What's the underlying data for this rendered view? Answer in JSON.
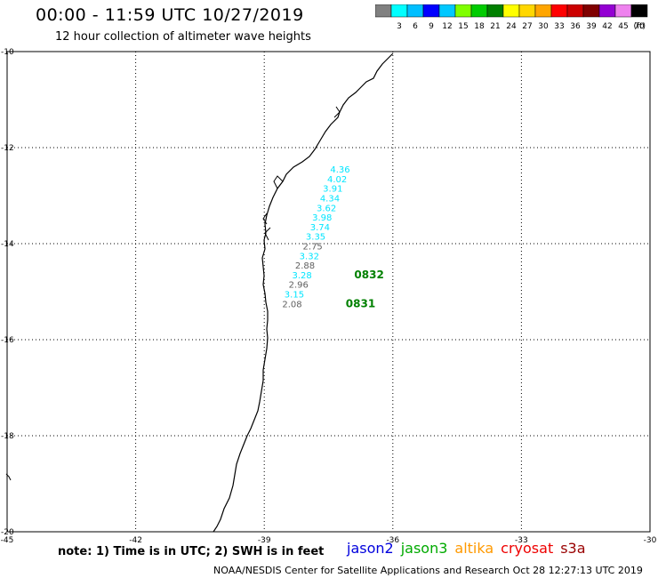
{
  "header": {
    "title": "00:00 - 11:59 UTC 10/27/2019",
    "subtitle": "12 hour collection of altimeter wave heights"
  },
  "colorbar": {
    "unit": "(ft)",
    "bins": [
      {
        "color": "#808080",
        "label": ""
      },
      {
        "color": "#00ffff",
        "label": "3"
      },
      {
        "color": "#00bfff",
        "label": "6"
      },
      {
        "color": "#0000ff",
        "label": "9"
      },
      {
        "color": "#00c8ff",
        "label": "12"
      },
      {
        "color": "#7fff00",
        "label": "15"
      },
      {
        "color": "#00cc00",
        "label": "18"
      },
      {
        "color": "#008000",
        "label": "21"
      },
      {
        "color": "#ffff00",
        "label": "24"
      },
      {
        "color": "#ffd700",
        "label": "27"
      },
      {
        "color": "#ffa500",
        "label": "30"
      },
      {
        "color": "#ff0000",
        "label": "33"
      },
      {
        "color": "#cc0000",
        "label": "36"
      },
      {
        "color": "#800000",
        "label": "39"
      },
      {
        "color": "#9400d3",
        "label": "42"
      },
      {
        "color": "#ee82ee",
        "label": "45"
      },
      {
        "color": "#000000",
        "label": "70"
      }
    ]
  },
  "map": {
    "lon_range": [
      -45,
      -30
    ],
    "lat_range": [
      -20,
      -10
    ],
    "lat_ticks": [
      "-10",
      "-12",
      "-14",
      "-16",
      "-18",
      "-20"
    ],
    "lon_ticks": [
      "-45",
      "-42",
      "-39",
      "-36",
      "-33",
      "-30"
    ],
    "observations": [
      {
        "lon": -37.23,
        "lat": -12.52,
        "value": "4.36",
        "color": "#00e5ff"
      },
      {
        "lon": -37.3,
        "lat": -12.72,
        "value": "4.02",
        "color": "#00e5ff"
      },
      {
        "lon": -37.4,
        "lat": -12.92,
        "value": "3.91",
        "color": "#00e5ff"
      },
      {
        "lon": -37.47,
        "lat": -13.12,
        "value": "4.34",
        "color": "#00e5ff"
      },
      {
        "lon": -37.55,
        "lat": -13.32,
        "value": "3.62",
        "color": "#00e5ff"
      },
      {
        "lon": -37.65,
        "lat": -13.52,
        "value": "3.98",
        "color": "#00e5ff"
      },
      {
        "lon": -37.7,
        "lat": -13.72,
        "value": "3.74",
        "color": "#00e5ff"
      },
      {
        "lon": -37.8,
        "lat": -13.92,
        "value": "3.35",
        "color": "#00e5ff"
      },
      {
        "lon": -37.87,
        "lat": -14.12,
        "value": "2.75",
        "color": "#606060"
      },
      {
        "lon": -37.95,
        "lat": -14.32,
        "value": "3.32",
        "color": "#00e5ff"
      },
      {
        "lon": -38.05,
        "lat": -14.52,
        "value": "2.88",
        "color": "#606060"
      },
      {
        "lon": -38.12,
        "lat": -14.72,
        "value": "3.28",
        "color": "#00e5ff"
      },
      {
        "lon": -38.2,
        "lat": -14.92,
        "value": "2.96",
        "color": "#606060"
      },
      {
        "lon": -38.3,
        "lat": -15.12,
        "value": "3.15",
        "color": "#00e5ff"
      },
      {
        "lon": -38.35,
        "lat": -15.32,
        "value": "2.08",
        "color": "#606060"
      }
    ],
    "time_labels": [
      {
        "lon": -36.9,
        "lat": -14.72,
        "text": "0832",
        "color": "#008000"
      },
      {
        "lon": -37.1,
        "lat": -15.32,
        "text": "0831",
        "color": "#008000"
      }
    ]
  },
  "footer": {
    "note": "note: 1) Time is in UTC; 2) SWH is in feet",
    "credits": "NOAA/NESDIS Center for Satellite Applications and Research    Oct 28 12:27:13 UTC 2019",
    "satellites": [
      {
        "name": "jason2",
        "color": "#0000dd"
      },
      {
        "name": "jason3",
        "color": "#00aa00"
      },
      {
        "name": "altika",
        "color": "#ff9900"
      },
      {
        "name": "cryosat",
        "color": "#ee0000"
      },
      {
        "name": "s3a",
        "color": "#990000"
      }
    ]
  }
}
